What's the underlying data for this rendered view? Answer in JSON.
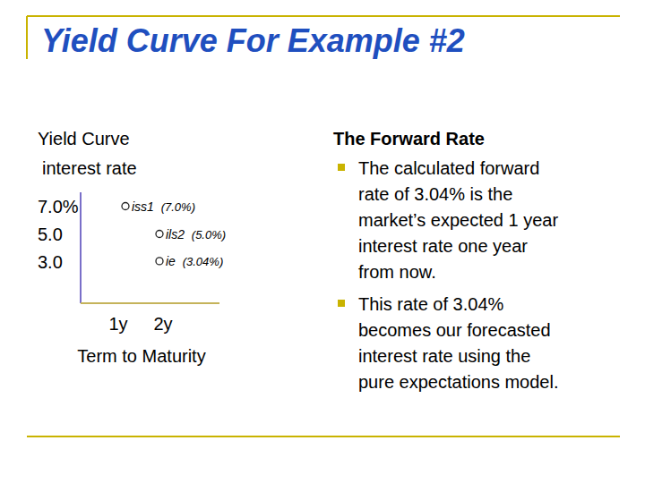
{
  "title": "Yield Curve For Example #2",
  "chart_data": {
    "type": "scatter",
    "title": "Yield Curve",
    "y_label": "interest rate",
    "x_label": "Term to Maturity",
    "categories": [
      "1y",
      "2y"
    ],
    "ylim": [
      0,
      8
    ],
    "yticks": [
      {
        "value": 7,
        "label": "7.0%"
      },
      {
        "value": 5,
        "label": "5.0"
      },
      {
        "value": 3,
        "label": "3.0"
      }
    ],
    "grid": false,
    "marker": "circle",
    "data_labels": true,
    "series": [
      {
        "name": "iss1",
        "color": "#222222",
        "values": [
          7.0,
          null
        ],
        "value_labels": [
          "(7.0%)",
          null
        ]
      },
      {
        "name": "ils2",
        "color": "#222222",
        "values": [
          null,
          5.0
        ],
        "value_labels": [
          null,
          "(5.0%)"
        ]
      },
      {
        "name": "ie",
        "color": "#222222",
        "values": [
          null,
          3.04
        ],
        "value_labels": [
          null,
          "(3.04%)"
        ]
      }
    ]
  },
  "panel": {
    "heading": "The Forward Rate",
    "bullets": [
      {
        "lines": [
          "The calculated forward",
          "rate of 3.04% is the",
          "market’s expected 1 year",
          "interest rate one year",
          "from now."
        ]
      },
      {
        "lines": [
          "This rate of 3.04%",
          "becomes our forecasted",
          "interest rate using the",
          "pure expectations model."
        ]
      }
    ]
  }
}
